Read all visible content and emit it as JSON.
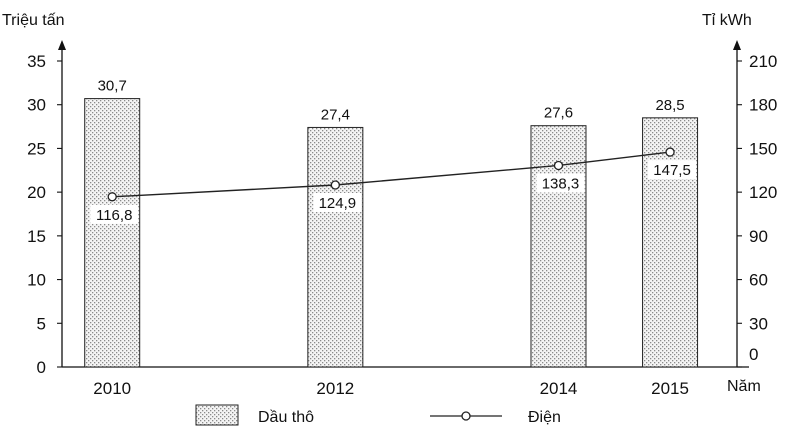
{
  "chart_data": {
    "type": "bar",
    "x_axis_label": "Năm",
    "left_axis": {
      "label": "Triệu tấn",
      "ylim": [
        0,
        35
      ],
      "ticks": [
        0,
        5,
        10,
        15,
        20,
        25,
        30,
        35
      ]
    },
    "right_axis": {
      "label": "Tỉ kWh",
      "ylim": [
        0,
        210
      ],
      "ticks": [
        0,
        30,
        60,
        90,
        120,
        150,
        180,
        210
      ]
    },
    "categories": [
      "2010",
      "2012",
      "2014",
      "2015"
    ],
    "x_values": [
      2010,
      2012,
      2014,
      2015
    ],
    "series": [
      {
        "name": "Dầu thô",
        "type": "bar",
        "axis": "left",
        "values": [
          30.7,
          27.4,
          27.6,
          28.5
        ],
        "labels": [
          "30,7",
          "27,4",
          "27,6",
          "28,5"
        ],
        "fill": "dotted-grey"
      },
      {
        "name": "Điện",
        "type": "line",
        "axis": "right",
        "values": [
          116.8,
          124.9,
          138.3,
          147.5
        ],
        "labels": [
          "116,8",
          "124,9",
          "138,3",
          "147,5"
        ],
        "marker": "open-circle"
      }
    ],
    "legend_position": "bottom",
    "grid": false
  }
}
